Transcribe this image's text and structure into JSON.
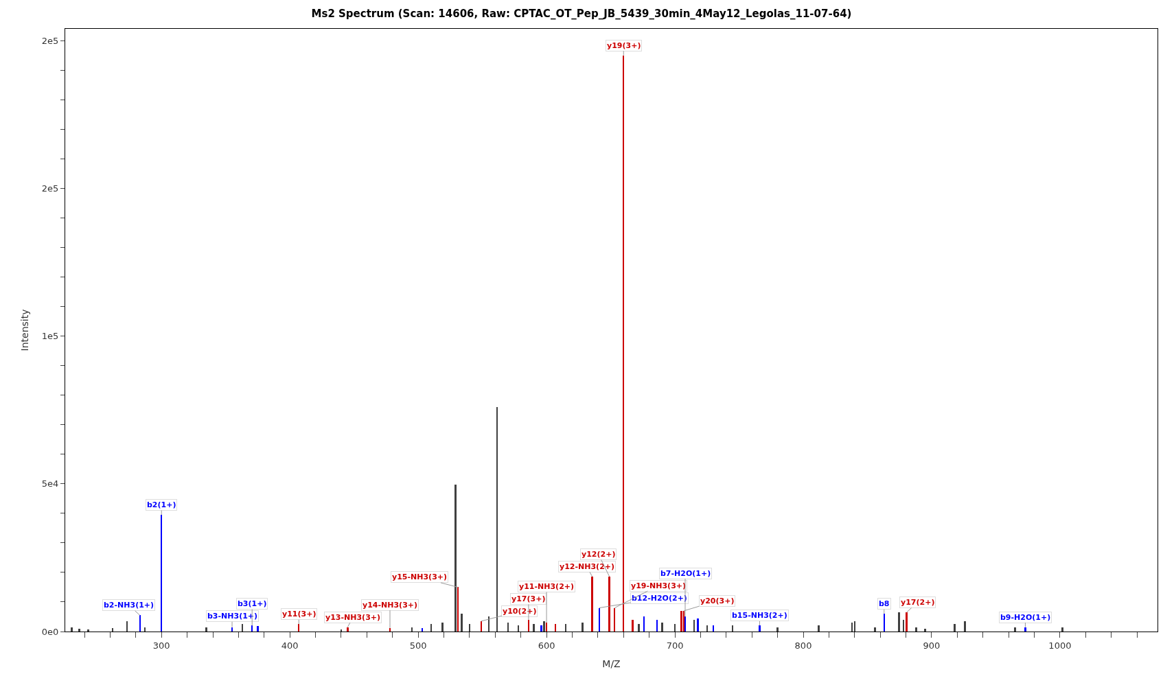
{
  "chart_data": {
    "type": "bar",
    "title": "Ms2 Spectrum (Scan: 14606, Raw: CPTAC_OT_Pep_JB_5439_30min_4May12_Legolas_11-07-64)",
    "xlabel": "M/Z",
    "ylabel": "Intensity",
    "xlim": [
      225,
      1076
    ],
    "ylim": [
      0,
      204000
    ],
    "xticks": [
      {
        "value": 240,
        "label": null
      },
      {
        "value": 260,
        "label": null
      },
      {
        "value": 280,
        "label": null
      },
      300,
      {
        "value": 320,
        "label": null
      },
      {
        "value": 340,
        "label": null
      },
      {
        "value": 360,
        "label": null
      },
      {
        "value": 380,
        "label": null
      },
      400,
      {
        "value": 420,
        "label": null
      },
      {
        "value": 440,
        "label": null
      },
      {
        "value": 460,
        "label": null
      },
      {
        "value": 480,
        "label": null
      },
      500,
      {
        "value": 520,
        "label": null
      },
      {
        "value": 540,
        "label": null
      },
      {
        "value": 560,
        "label": null
      },
      {
        "value": 580,
        "label": null
      },
      600,
      {
        "value": 620,
        "label": null
      },
      {
        "value": 640,
        "label": null
      },
      {
        "value": 660,
        "label": null
      },
      {
        "value": 680,
        "label": null
      },
      700,
      {
        "value": 720,
        "label": null
      },
      {
        "value": 740,
        "label": null
      },
      {
        "value": 760,
        "label": null
      },
      {
        "value": 780,
        "label": null
      },
      800,
      {
        "value": 820,
        "label": null
      },
      {
        "value": 840,
        "label": null
      },
      {
        "value": 860,
        "label": null
      },
      {
        "value": 880,
        "label": null
      },
      900,
      {
        "value": 920,
        "label": null
      },
      {
        "value": 940,
        "label": null
      },
      {
        "value": 960,
        "label": null
      },
      {
        "value": 980,
        "label": null
      },
      1000,
      {
        "value": 1020,
        "label": null
      },
      {
        "value": 1040,
        "label": null
      },
      {
        "value": 1060,
        "label": null
      }
    ],
    "yticks": [
      {
        "value": 0,
        "label": "0e0"
      },
      {
        "value": 10000,
        "label": null
      },
      {
        "value": 20000,
        "label": null
      },
      {
        "value": 30000,
        "label": null
      },
      {
        "value": 40000,
        "label": null
      },
      {
        "value": 50000,
        "label": "5e4"
      },
      {
        "value": 60000,
        "label": null
      },
      {
        "value": 70000,
        "label": null
      },
      {
        "value": 80000,
        "label": null
      },
      {
        "value": 90000,
        "label": null
      },
      {
        "value": 100000,
        "label": "1e5"
      },
      {
        "value": 110000,
        "label": null
      },
      {
        "value": 120000,
        "label": null
      },
      {
        "value": 130000,
        "label": null
      },
      {
        "value": 140000,
        "label": null
      },
      {
        "value": 150000,
        "label": "2e5"
      },
      {
        "value": 160000,
        "label": null
      },
      {
        "value": 170000,
        "label": null
      },
      {
        "value": 180000,
        "label": null
      },
      {
        "value": 190000,
        "label": null
      },
      {
        "value": 200000,
        "label": "2e5"
      }
    ],
    "series": [
      {
        "color": "#404040",
        "x": [
          230,
          236,
          243,
          262,
          273,
          287,
          335,
          363,
          440,
          495,
          510,
          519,
          529,
          534,
          540,
          555,
          561.5,
          570,
          578,
          590,
          598,
          615,
          628,
          672,
          690,
          700,
          715,
          725,
          745,
          780,
          812,
          838,
          840,
          856,
          874.5,
          878,
          888,
          895,
          918,
          926,
          965,
          1002
        ],
        "values": [
          1500,
          1000,
          800,
          1200,
          3500,
          1500,
          1500,
          2500,
          800,
          1500,
          2500,
          3000,
          49700,
          6000,
          2500,
          5000,
          76000,
          3000,
          2000,
          2500,
          3500,
          2500,
          3000,
          2500,
          3000,
          2500,
          4000,
          2000,
          2000,
          1500,
          2000,
          3000,
          3500,
          1500,
          6500,
          4000,
          1500,
          1000,
          2500,
          3500,
          1500,
          1500
        ]
      },
      {
        "color": "#0000ff",
        "x": [
          283.2,
          300,
          355,
          370.6,
          375,
          503,
          596,
          641,
          676,
          686,
          708,
          718,
          730,
          766,
          863,
          973
        ],
        "values": [
          5500,
          39500,
          1500,
          2000,
          1800,
          1200,
          2000,
          8000,
          5000,
          4000,
          5000,
          4500,
          2000,
          2000,
          6000,
          1500
        ]
      },
      {
        "color": "#cc0000",
        "x": [
          407,
          445,
          478,
          531,
          549,
          586,
          600,
          607,
          635.6,
          649,
          653,
          660,
          667,
          705,
          707,
          880.5
        ],
        "values": [
          2500,
          1500,
          1200,
          15000,
          3500,
          4000,
          3000,
          2500,
          18600,
          18600,
          8000,
          195000,
          4000,
          7000,
          7000,
          6500
        ]
      }
    ],
    "annotations": [
      {
        "text": "y19(3+)",
        "x": 660,
        "y": 195000
      },
      {
        "text": "b2(1+)",
        "x": 300,
        "y": 39500
      },
      {
        "text": "b2-NH3(1+)",
        "x": 283.2,
        "y": 5500
      },
      {
        "text": "b3-NH3(1+)",
        "x": 355,
        "y": 1500
      },
      {
        "text": "b3(1+)",
        "x": 370.6,
        "y": 2000
      },
      {
        "text": "y11(3+)",
        "x": 407,
        "y": 2500
      },
      {
        "text": "y13-NH3(3+)",
        "x": 445,
        "y": 1500
      },
      {
        "text": "y14-NH3(3+)",
        "x": 478,
        "y": 1200
      },
      {
        "text": "y15-NH3(3+)",
        "x": 531,
        "y": 15000
      },
      {
        "text": "y10(2+)",
        "x": 549,
        "y": 3500
      },
      {
        "text": "y17(3+)",
        "x": 586,
        "y": 4000
      },
      {
        "text": "y11-NH3(2+)",
        "x": 600,
        "y": 3000
      },
      {
        "text": "y12-NH3(2+)",
        "x": 635.6,
        "y": 18600
      },
      {
        "text": "y12(2+)",
        "x": 649,
        "y": 18600
      },
      {
        "text": "b12-H2O(2+)",
        "x": 641,
        "y": 8000
      },
      {
        "text": "y19-NH3(3+)",
        "x": 653,
        "y": 8000
      },
      {
        "text": "y20(3+)",
        "x": 707,
        "y": 7000
      },
      {
        "text": "b7-H2O(1+)",
        "x": 708,
        "y": 5000
      },
      {
        "text": "b15-NH3(2+)",
        "x": 766,
        "y": 2000
      },
      {
        "text": "b8",
        "x": 863,
        "y": 6000
      },
      {
        "text": "y17(2+)",
        "x": 880.5,
        "y": 6500
      },
      {
        "text": "b9-H2O(1+)",
        "x": 973,
        "y": 1500
      }
    ]
  }
}
